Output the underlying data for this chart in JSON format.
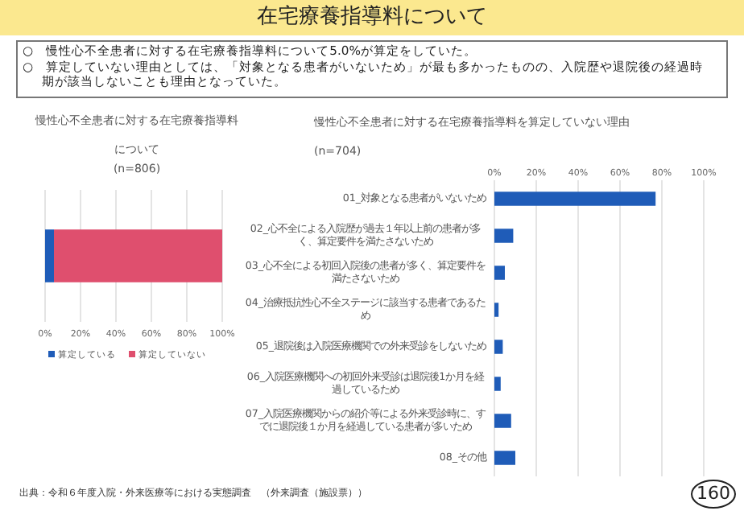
{
  "chart_data": [
    {
      "type": "bar",
      "title": "慢性心不全患者に対する在宅療養指導料について",
      "subtitle": "(n=806)",
      "orientation": "horizontal",
      "stacked": true,
      "categories": [
        null
      ],
      "series": [
        {
          "name": "算定している",
          "color": "#1f5cb8",
          "values": [
            5
          ]
        },
        {
          "name": "算定していない",
          "color": "#df4f6e",
          "values": [
            95
          ]
        }
      ],
      "xlim": [
        0,
        100
      ],
      "xticks": [
        {
          "value": 0,
          "label": "0%"
        },
        {
          "value": 20,
          "label": "20%"
        },
        {
          "value": 40,
          "label": "40%"
        },
        {
          "value": 60,
          "label": "60%"
        },
        {
          "value": 80,
          "label": "80%"
        },
        {
          "value": 100,
          "label": "100%"
        }
      ],
      "grid": "x",
      "legend": "bottom",
      "annotations": [
        "在宅療養指導料について",
        "○　慢性心不全患者に対する在宅療養指導料について5.0%が算定をしていた。",
        "○　算定していない理由としては、「対象となる患者がいないため」が最も多かったものの、入院歴や退院後の経過時期が該当しないことも理由となっていた。"
      ]
    },
    {
      "type": "bar",
      "title": "慢性心不全患者に対する在宅療養指導料を算定していない理由(n=704)",
      "orientation": "horizontal",
      "categories": [
        "01_対象となる患者がいないため",
        "02_心不全による入院歴が過去１年以上前の患者が多く、算定要件を満たさないため",
        "03_心不全による初回入院後の患者が多く、算定要件を満たさないため",
        "04_治療抵抗性心不全ステージに該当する患者であるため",
        "05_退院後は入院医療機関での外来受診をしないため",
        "06_入院医療機関への初回外来受診は退院後1か月を経過しているため",
        "07_入院医療機関からの紹介等による外来受診時に、すでに退院後１か月を経過している患者が多いため",
        "08_その他"
      ],
      "values": [
        77,
        9,
        5,
        2,
        4,
        3,
        8,
        10
      ],
      "color": "#1f5cb8",
      "xlim": [
        0,
        100
      ],
      "xticks": [
        {
          "value": 0,
          "label": "0%"
        },
        {
          "value": 20,
          "label": "20%"
        },
        {
          "value": 40,
          "label": "40%"
        },
        {
          "value": 60,
          "label": "60%"
        },
        {
          "value": 80,
          "label": "80%"
        },
        {
          "value": 100,
          "label": "100%"
        }
      ],
      "grid": "x",
      "annotations": [
        "出典：令和６年度入院・外来医療等における実態調査　（外来調査（施設票））",
        "160"
      ]
    }
  ]
}
